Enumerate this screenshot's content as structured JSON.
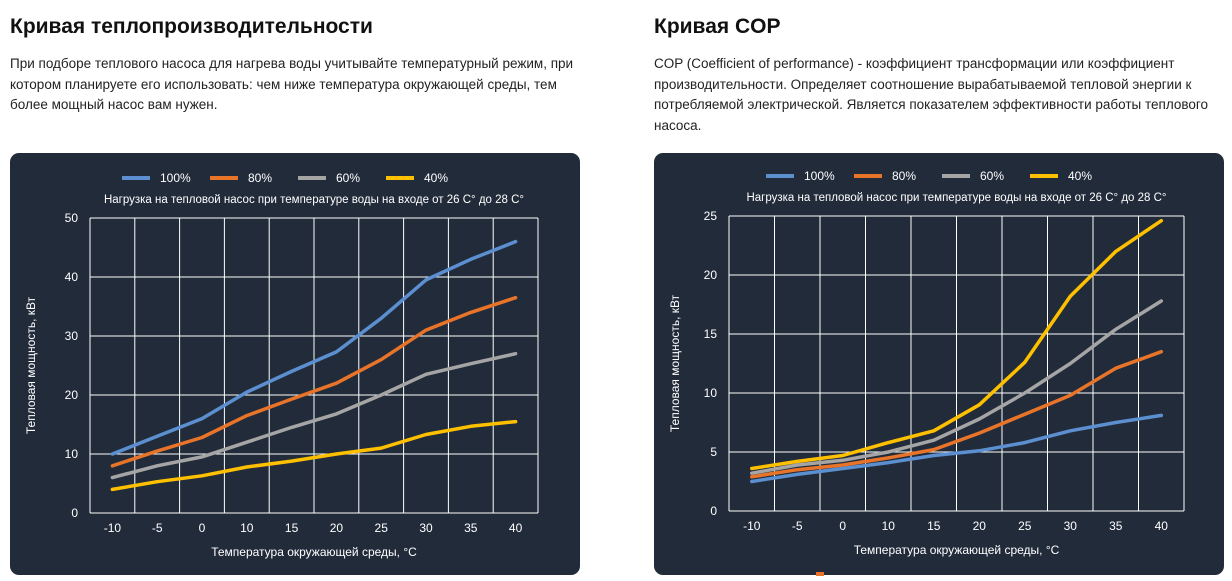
{
  "left": {
    "title": "Кривая теплопроизводительности",
    "description": "При подборе теплового насоса для нагрева воды учитывайте температурный режим, при котором планируете его использовать: чем ниже температура окружающей среды, тем более мощный насос вам нужен."
  },
  "right": {
    "title": "Кривая COP",
    "description": "COP (Coefficient of performance) - коэффициент трансформации или коэффициент производительности. Определяет соотношение вырабатываемой тепловой энергии к потребляемой электрической. Является показателем эффективности работы теплового насоса."
  },
  "chart_data": [
    {
      "type": "line",
      "title": "Нагрузка на тепловой насос при температуре воды на входе от 26 С° до 28 С°",
      "xlabel": "Температура окружающей среды, °С",
      "ylabel": "Тепловая мощность, кВт",
      "x": [
        -10,
        -5,
        0,
        10,
        15,
        20,
        25,
        30,
        35,
        40
      ],
      "x_tick_labels": [
        "-10",
        "-5",
        "0",
        "10",
        "15",
        "20",
        "25",
        "30",
        "35",
        "40"
      ],
      "ylim": [
        0,
        50
      ],
      "y_ticks": [
        0,
        10,
        20,
        30,
        40,
        50
      ],
      "grid": true,
      "legend_position": "top",
      "series": [
        {
          "name": "100%",
          "color": "#5b8fd0",
          "values": [
            10,
            13,
            16,
            20.5,
            24,
            27.3,
            33,
            39.5,
            43,
            46
          ]
        },
        {
          "name": "80%",
          "color": "#e8742a",
          "values": [
            8,
            10.5,
            12.8,
            16.5,
            19.3,
            22,
            26,
            31,
            34,
            36.5
          ]
        },
        {
          "name": "60%",
          "color": "#a5a5a5",
          "values": [
            6,
            8,
            9.5,
            12,
            14.5,
            16.8,
            20,
            23.5,
            25.3,
            27
          ]
        },
        {
          "name": "40%",
          "color": "#ffc000",
          "values": [
            4,
            5.3,
            6.3,
            7.8,
            8.8,
            10,
            11,
            13.3,
            14.7,
            15.5
          ]
        }
      ]
    },
    {
      "type": "line",
      "title": "Нагрузка на тепловой насос при температуре воды на входе от 26 С° до 28 С°",
      "xlabel": "Температура окружающей среды, °С",
      "ylabel": "Тепловая мощность, кВт",
      "x": [
        -10,
        -5,
        0,
        10,
        15,
        20,
        25,
        30,
        35,
        40
      ],
      "x_tick_labels": [
        "-10",
        "-5",
        "0",
        "10",
        "15",
        "20",
        "25",
        "30",
        "35",
        "40"
      ],
      "ylim": [
        0,
        25
      ],
      "y_ticks": [
        0,
        5,
        10,
        15,
        20,
        25
      ],
      "grid": true,
      "legend_position": "top",
      "series": [
        {
          "name": "100%",
          "color": "#5b8fd0",
          "values": [
            2.5,
            3.1,
            3.6,
            4.1,
            4.7,
            5.1,
            5.8,
            6.8,
            7.5,
            8.1
          ]
        },
        {
          "name": "80%",
          "color": "#e8742a",
          "values": [
            2.9,
            3.5,
            3.9,
            4.5,
            5.2,
            6.6,
            8.2,
            9.8,
            12.1,
            13.5
          ]
        },
        {
          "name": "60%",
          "color": "#a5a5a5",
          "values": [
            3.2,
            3.9,
            4.3,
            5.0,
            6.0,
            7.8,
            10.0,
            12.5,
            15.4,
            17.8
          ]
        },
        {
          "name": "40%",
          "color": "#ffc000",
          "values": [
            3.6,
            4.2,
            4.7,
            5.8,
            6.8,
            9.0,
            12.6,
            18.2,
            22.0,
            24.6
          ]
        }
      ]
    }
  ]
}
